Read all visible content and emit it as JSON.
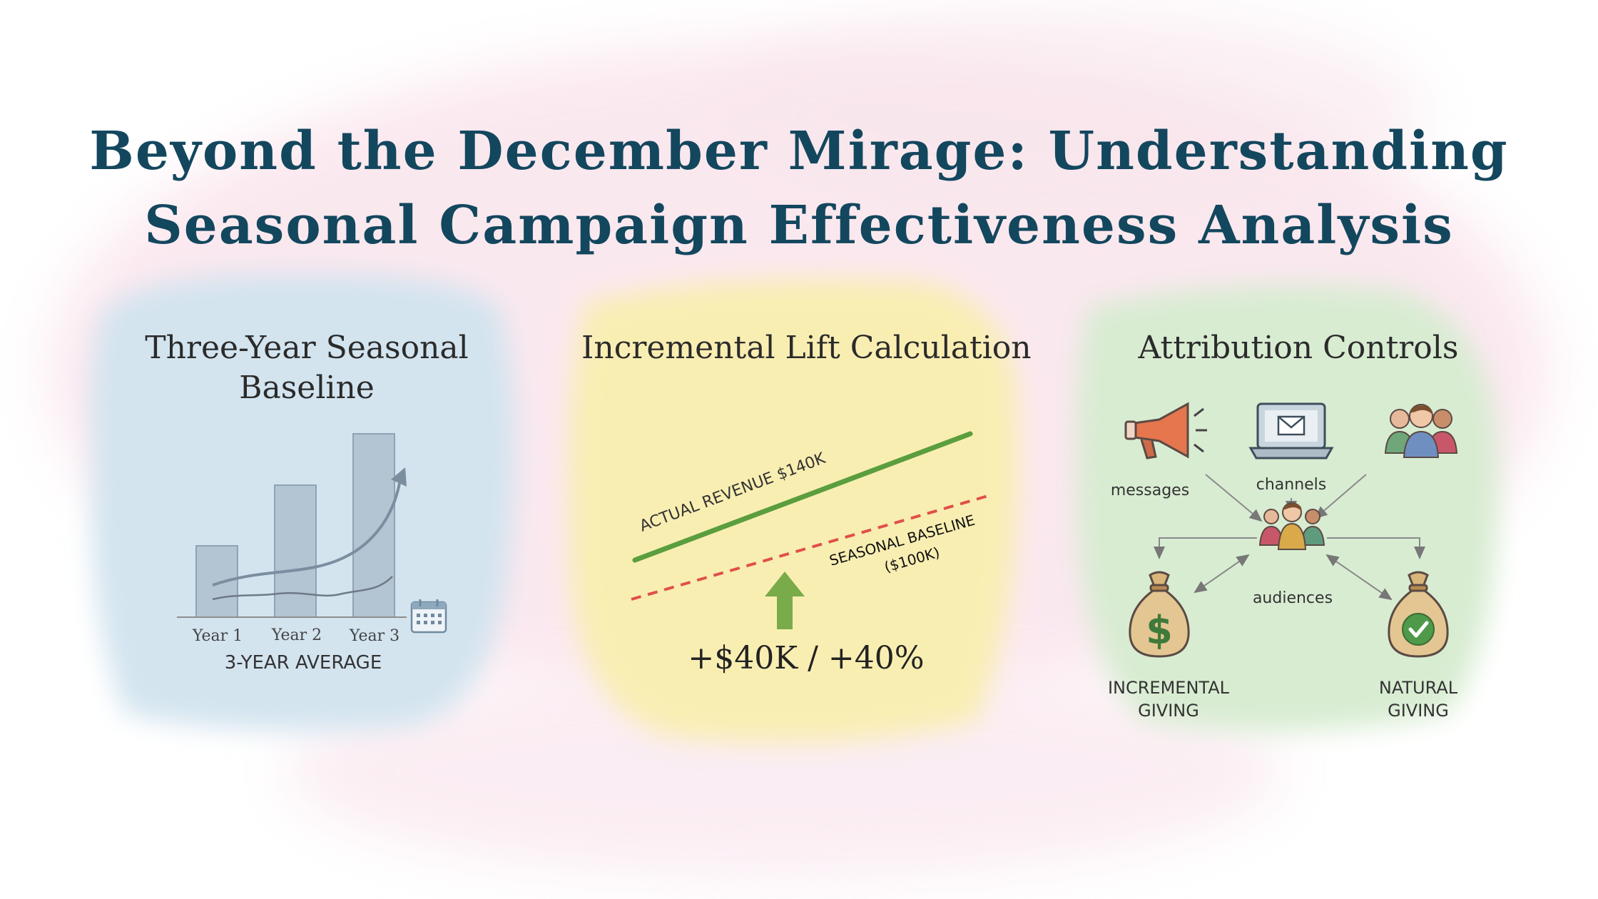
{
  "title": {
    "line1": "Beyond the December Mirage: Understanding",
    "line2": "Seasonal Campaign Effectiveness Analysis"
  },
  "panels": {
    "baseline": {
      "title_line1": "Three-Year Seasonal",
      "title_line2": "Baseline",
      "year_labels": [
        "Year 1",
        "Year 2",
        "Year 3"
      ],
      "caption": "3-YEAR AVERAGE",
      "icon": "calendar-icon"
    },
    "lift": {
      "title": "Incremental Lift Calculation",
      "actual_label": "ACTUAL REVENUE $140K",
      "baseline_label_line1": "SEASONAL BASELINE",
      "baseline_label_line2": "($100K)",
      "result": "+$40K / +40%",
      "icon": "up-arrow-icon"
    },
    "attribution": {
      "title": "Attribution Controls",
      "nodes": {
        "messages": "messages",
        "channels": "channels",
        "audiences": "audiences",
        "incremental_line1": "INCREMENTAL",
        "incremental_line2": "GIVING",
        "natural_line1": "NATURAL",
        "natural_line2": "GIVING"
      },
      "icons": [
        "megaphone-icon",
        "laptop-mail-icon",
        "people-group-icon",
        "audience-people-icon",
        "dollar-bag-icon",
        "check-bag-icon"
      ]
    }
  },
  "colors": {
    "title": "#13475e",
    "blue_wash": "#d6e6f0",
    "yellow_wash": "#fbf0b8",
    "green_wash": "#dcefd8",
    "pink_wash": "#f7dbe6",
    "actual_line": "#5a9e3e",
    "baseline_line": "#e0504a",
    "arrow": "#7aab4a"
  }
}
